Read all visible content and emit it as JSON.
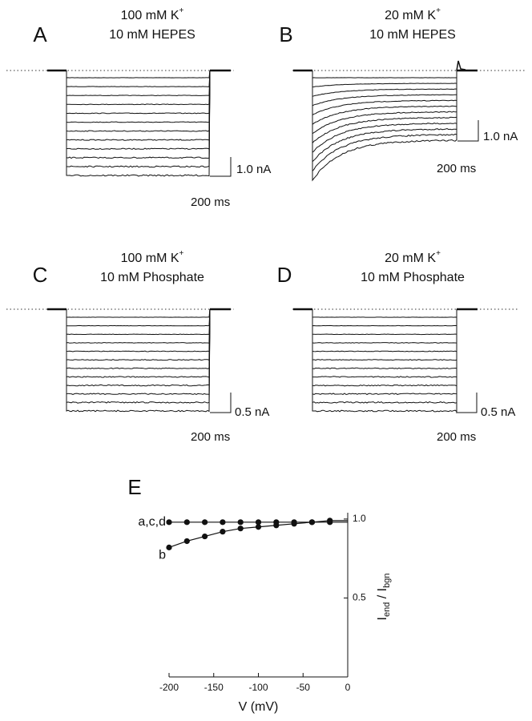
{
  "panels": [
    {
      "label": "A",
      "conc": "100 mM K",
      "charge": "+",
      "buffer": "10 mM HEPES",
      "current_scale": "1.0 nA",
      "time_scale": "200 ms"
    },
    {
      "label": "B",
      "conc": "20 mM K",
      "charge": "+",
      "buffer": "10 mM HEPES",
      "current_scale": "1.0 nA",
      "time_scale": "200 ms"
    },
    {
      "label": "C",
      "conc": "100 mM K",
      "charge": "+",
      "buffer": "10 mM Phosphate",
      "current_scale": "0.5 nA",
      "time_scale": "200 ms"
    },
    {
      "label": "D",
      "conc": "20 mM K",
      "charge": "+",
      "buffer": "10 mM Phosphate",
      "current_scale": "0.5 nA",
      "time_scale": "200 ms"
    }
  ],
  "chart_data": {
    "type": "scatter",
    "panel_label": "E",
    "xlabel": "V (mV)",
    "ylabel_parts": [
      "I",
      "end",
      " / I",
      "bgn"
    ],
    "x": [
      -200,
      -180,
      -160,
      -140,
      -120,
      -100,
      -80,
      -60,
      -40,
      -20
    ],
    "series": [
      {
        "name": "a,c,d",
        "color": "#111111",
        "values": [
          0.98,
          0.98,
          0.98,
          0.98,
          0.98,
          0.98,
          0.98,
          0.98,
          0.98,
          0.98
        ]
      },
      {
        "name": "b",
        "color": "#111111",
        "values": [
          0.82,
          0.86,
          0.89,
          0.92,
          0.94,
          0.95,
          0.96,
          0.97,
          0.98,
          0.99
        ]
      }
    ],
    "xlim": [
      -200,
      0
    ],
    "xticks": [
      -200,
      -150,
      -100,
      -50,
      0
    ],
    "ylim": [
      0,
      1.04
    ],
    "yticks": [
      {
        "value": 0.5,
        "label": "0.5"
      },
      {
        "value": 1,
        "label": "1.0"
      }
    ]
  }
}
